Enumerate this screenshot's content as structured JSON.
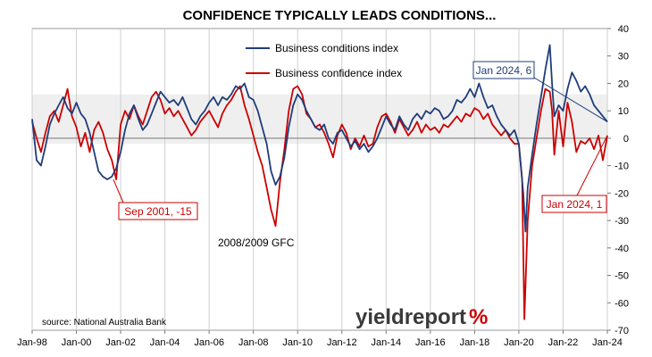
{
  "chart_data": {
    "type": "line",
    "title": "CONFIDENCE TYPICALLY LEADS CONDITIONS...",
    "x_ticks": [
      "Jan-98",
      "Jan-00",
      "Jan-02",
      "Jan-04",
      "Jan-06",
      "Jan-08",
      "Jan-10",
      "Jan-12",
      "Jan-14",
      "Jan-16",
      "Jan-18",
      "Jan-20",
      "Jan-22",
      "Jan-24"
    ],
    "x_range": [
      "Jan-98",
      "Jan-24"
    ],
    "y_ticks": [
      40,
      30,
      20,
      10,
      0,
      -10,
      -20,
      -30,
      -40,
      -50,
      -60,
      -70
    ],
    "ylim": [
      -70,
      40
    ],
    "y_axis_side": "right",
    "grid": "vertical",
    "shaded_band": [
      -2,
      16
    ],
    "legend_position": "top-center",
    "series": [
      {
        "name": "Business conditions index",
        "color": "#1f3d7a",
        "points": [
          [
            1998.0,
            7
          ],
          [
            1998.2,
            -8
          ],
          [
            1998.4,
            -10
          ],
          [
            1998.6,
            -3
          ],
          [
            1998.8,
            5
          ],
          [
            1999.0,
            9
          ],
          [
            1999.2,
            12
          ],
          [
            1999.4,
            15
          ],
          [
            1999.6,
            11
          ],
          [
            1999.8,
            9
          ],
          [
            2000.0,
            13
          ],
          [
            2000.2,
            9
          ],
          [
            2000.4,
            7
          ],
          [
            2000.6,
            2
          ],
          [
            2000.8,
            -5
          ],
          [
            2001.0,
            -12
          ],
          [
            2001.2,
            -14
          ],
          [
            2001.4,
            -15
          ],
          [
            2001.6,
            -14
          ],
          [
            2001.8,
            -11
          ],
          [
            2002.0,
            -5
          ],
          [
            2002.2,
            3
          ],
          [
            2002.4,
            9
          ],
          [
            2002.6,
            12
          ],
          [
            2002.8,
            7
          ],
          [
            2003.0,
            3
          ],
          [
            2003.2,
            5
          ],
          [
            2003.4,
            9
          ],
          [
            2003.6,
            13
          ],
          [
            2003.8,
            17
          ],
          [
            2004.0,
            15
          ],
          [
            2004.2,
            13
          ],
          [
            2004.4,
            14
          ],
          [
            2004.6,
            12
          ],
          [
            2004.8,
            15
          ],
          [
            2005.0,
            11
          ],
          [
            2005.2,
            7
          ],
          [
            2005.4,
            5
          ],
          [
            2005.6,
            8
          ],
          [
            2005.8,
            10
          ],
          [
            2006.0,
            13
          ],
          [
            2006.2,
            15
          ],
          [
            2006.4,
            12
          ],
          [
            2006.6,
            15
          ],
          [
            2006.8,
            14
          ],
          [
            2007.0,
            16
          ],
          [
            2007.2,
            19
          ],
          [
            2007.4,
            18
          ],
          [
            2007.6,
            20
          ],
          [
            2007.8,
            15
          ],
          [
            2008.0,
            14
          ],
          [
            2008.2,
            10
          ],
          [
            2008.4,
            4
          ],
          [
            2008.6,
            -2
          ],
          [
            2008.8,
            -12
          ],
          [
            2009.0,
            -17
          ],
          [
            2009.2,
            -14
          ],
          [
            2009.4,
            -7
          ],
          [
            2009.6,
            4
          ],
          [
            2009.8,
            12
          ],
          [
            2010.0,
            16
          ],
          [
            2010.2,
            14
          ],
          [
            2010.4,
            10
          ],
          [
            2010.6,
            7
          ],
          [
            2010.8,
            4
          ],
          [
            2011.0,
            3
          ],
          [
            2011.2,
            5
          ],
          [
            2011.4,
            0
          ],
          [
            2011.6,
            -2
          ],
          [
            2011.8,
            2
          ],
          [
            2012.0,
            3
          ],
          [
            2012.2,
            0
          ],
          [
            2012.4,
            -3
          ],
          [
            2012.6,
            -1
          ],
          [
            2012.8,
            -4
          ],
          [
            2013.0,
            -2
          ],
          [
            2013.2,
            -5
          ],
          [
            2013.4,
            -3
          ],
          [
            2013.6,
            0
          ],
          [
            2013.8,
            4
          ],
          [
            2014.0,
            8
          ],
          [
            2014.2,
            5
          ],
          [
            2014.4,
            3
          ],
          [
            2014.6,
            8
          ],
          [
            2014.8,
            5
          ],
          [
            2015.0,
            3
          ],
          [
            2015.2,
            7
          ],
          [
            2015.4,
            9
          ],
          [
            2015.6,
            7
          ],
          [
            2015.8,
            10
          ],
          [
            2016.0,
            9
          ],
          [
            2016.2,
            11
          ],
          [
            2016.4,
            10
          ],
          [
            2016.6,
            7
          ],
          [
            2016.8,
            8
          ],
          [
            2017.0,
            10
          ],
          [
            2017.2,
            14
          ],
          [
            2017.4,
            13
          ],
          [
            2017.6,
            15
          ],
          [
            2017.8,
            18
          ],
          [
            2018.0,
            15
          ],
          [
            2018.2,
            20
          ],
          [
            2018.4,
            15
          ],
          [
            2018.6,
            11
          ],
          [
            2018.8,
            12
          ],
          [
            2019.0,
            8
          ],
          [
            2019.2,
            5
          ],
          [
            2019.4,
            3
          ],
          [
            2019.6,
            1
          ],
          [
            2019.8,
            3
          ],
          [
            2020.0,
            -2
          ],
          [
            2020.2,
            -20
          ],
          [
            2020.3,
            -34
          ],
          [
            2020.4,
            -18
          ],
          [
            2020.6,
            -6
          ],
          [
            2020.8,
            5
          ],
          [
            2021.0,
            15
          ],
          [
            2021.2,
            25
          ],
          [
            2021.4,
            34
          ],
          [
            2021.5,
            20
          ],
          [
            2021.6,
            8
          ],
          [
            2021.8,
            12
          ],
          [
            2022.0,
            10
          ],
          [
            2022.2,
            18
          ],
          [
            2022.4,
            24
          ],
          [
            2022.6,
            21
          ],
          [
            2022.8,
            17
          ],
          [
            2023.0,
            19
          ],
          [
            2023.2,
            16
          ],
          [
            2023.4,
            12
          ],
          [
            2023.6,
            10
          ],
          [
            2023.8,
            8
          ],
          [
            2024.0,
            6
          ]
        ]
      },
      {
        "name": "Business confidence index",
        "color": "#cc0000",
        "points": [
          [
            1998.0,
            6
          ],
          [
            1998.2,
            0
          ],
          [
            1998.4,
            -5
          ],
          [
            1998.6,
            2
          ],
          [
            1998.8,
            8
          ],
          [
            1999.0,
            10
          ],
          [
            1999.2,
            6
          ],
          [
            1999.4,
            12
          ],
          [
            1999.6,
            18
          ],
          [
            1999.8,
            8
          ],
          [
            2000.0,
            4
          ],
          [
            2000.2,
            -3
          ],
          [
            2000.4,
            2
          ],
          [
            2000.6,
            -5
          ],
          [
            2000.8,
            3
          ],
          [
            2001.0,
            6
          ],
          [
            2001.2,
            2
          ],
          [
            2001.4,
            -4
          ],
          [
            2001.6,
            -8
          ],
          [
            2001.8,
            -15
          ],
          [
            2002.0,
            5
          ],
          [
            2002.2,
            10
          ],
          [
            2002.4,
            7
          ],
          [
            2002.6,
            12
          ],
          [
            2002.8,
            8
          ],
          [
            2003.0,
            5
          ],
          [
            2003.2,
            10
          ],
          [
            2003.4,
            15
          ],
          [
            2003.6,
            17
          ],
          [
            2003.8,
            14
          ],
          [
            2004.0,
            9
          ],
          [
            2004.2,
            11
          ],
          [
            2004.4,
            8
          ],
          [
            2004.6,
            10
          ],
          [
            2004.8,
            7
          ],
          [
            2005.0,
            4
          ],
          [
            2005.2,
            1
          ],
          [
            2005.4,
            3
          ],
          [
            2005.6,
            6
          ],
          [
            2005.8,
            8
          ],
          [
            2006.0,
            10
          ],
          [
            2006.2,
            7
          ],
          [
            2006.4,
            4
          ],
          [
            2006.6,
            9
          ],
          [
            2006.8,
            12
          ],
          [
            2007.0,
            14
          ],
          [
            2007.2,
            17
          ],
          [
            2007.4,
            19
          ],
          [
            2007.6,
            12
          ],
          [
            2007.8,
            7
          ],
          [
            2008.0,
            1
          ],
          [
            2008.2,
            -5
          ],
          [
            2008.4,
            -10
          ],
          [
            2008.6,
            -18
          ],
          [
            2008.8,
            -26
          ],
          [
            2009.0,
            -32
          ],
          [
            2009.2,
            -16
          ],
          [
            2009.4,
            -4
          ],
          [
            2009.6,
            10
          ],
          [
            2009.8,
            18
          ],
          [
            2010.0,
            19
          ],
          [
            2010.2,
            16
          ],
          [
            2010.4,
            9
          ],
          [
            2010.6,
            7
          ],
          [
            2010.8,
            4
          ],
          [
            2011.0,
            5
          ],
          [
            2011.2,
            2
          ],
          [
            2011.4,
            -2
          ],
          [
            2011.6,
            -7
          ],
          [
            2011.8,
            1
          ],
          [
            2012.0,
            5
          ],
          [
            2012.2,
            2
          ],
          [
            2012.4,
            -4
          ],
          [
            2012.6,
            0
          ],
          [
            2012.8,
            -3
          ],
          [
            2013.0,
            1
          ],
          [
            2013.2,
            -3
          ],
          [
            2013.4,
            -2
          ],
          [
            2013.6,
            4
          ],
          [
            2013.8,
            8
          ],
          [
            2014.0,
            9
          ],
          [
            2014.2,
            6
          ],
          [
            2014.4,
            2
          ],
          [
            2014.6,
            7
          ],
          [
            2014.8,
            4
          ],
          [
            2015.0,
            1
          ],
          [
            2015.2,
            3
          ],
          [
            2015.4,
            6
          ],
          [
            2015.6,
            2
          ],
          [
            2015.8,
            5
          ],
          [
            2016.0,
            3
          ],
          [
            2016.2,
            4
          ],
          [
            2016.4,
            2
          ],
          [
            2016.6,
            5
          ],
          [
            2016.8,
            4
          ],
          [
            2017.0,
            6
          ],
          [
            2017.2,
            8
          ],
          [
            2017.4,
            6
          ],
          [
            2017.6,
            9
          ],
          [
            2017.8,
            8
          ],
          [
            2018.0,
            11
          ],
          [
            2018.2,
            10
          ],
          [
            2018.4,
            7
          ],
          [
            2018.6,
            9
          ],
          [
            2018.8,
            5
          ],
          [
            2019.0,
            3
          ],
          [
            2019.2,
            1
          ],
          [
            2019.4,
            3
          ],
          [
            2019.6,
            0
          ],
          [
            2019.8,
            -2
          ],
          [
            2020.0,
            -2
          ],
          [
            2020.15,
            -15
          ],
          [
            2020.25,
            -66
          ],
          [
            2020.4,
            -30
          ],
          [
            2020.6,
            -10
          ],
          [
            2020.8,
            0
          ],
          [
            2021.0,
            10
          ],
          [
            2021.2,
            18
          ],
          [
            2021.4,
            17
          ],
          [
            2021.5,
            10
          ],
          [
            2021.6,
            -6
          ],
          [
            2021.8,
            10
          ],
          [
            2022.0,
            -3
          ],
          [
            2022.2,
            13
          ],
          [
            2022.4,
            6
          ],
          [
            2022.6,
            -5
          ],
          [
            2022.8,
            -1
          ],
          [
            2023.0,
            -2
          ],
          [
            2023.2,
            0
          ],
          [
            2023.4,
            -4
          ],
          [
            2023.6,
            1
          ],
          [
            2023.8,
            -8
          ],
          [
            2024.0,
            1
          ]
        ]
      }
    ],
    "annotations": [
      {
        "id": "sep2001",
        "text": "Sep 2001, -15",
        "point": [
          2001.67,
          -15
        ],
        "color": "#cc0000"
      },
      {
        "id": "jan2024-conf",
        "text": "Jan 2024, 1",
        "point": [
          2024.0,
          1
        ],
        "color": "#cc0000"
      },
      {
        "id": "jan2024-cond",
        "text": "Jan 2024, 6",
        "point": [
          2024.0,
          6
        ],
        "color": "#1f3d7a"
      },
      {
        "id": "gfc",
        "text": "2008/2009 GFC",
        "color": "#000000"
      }
    ],
    "source": "source: National Australia Bank",
    "brand": {
      "main": "yieldreport",
      "suffix": "%",
      "main_color": "#3a3a3a",
      "suffix_color": "#cc0000"
    }
  }
}
